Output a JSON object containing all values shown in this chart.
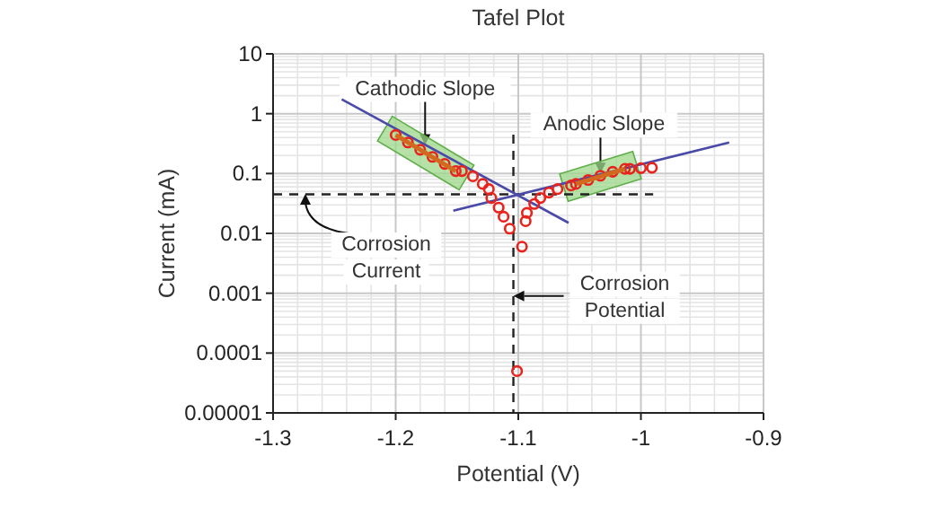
{
  "chart_data": {
    "type": "scatter",
    "title": "Tafel Plot",
    "xlabel": "Potential (V)",
    "ylabel": "Current (mA)",
    "log": "y",
    "grid": true,
    "xlim": [
      -1.3,
      -0.9
    ],
    "xticks": [
      -1.3,
      -1.2,
      -1.1,
      -1,
      -0.9
    ],
    "ylim": [
      1e-05,
      10
    ],
    "yticks": [
      {
        "value": 1e-05,
        "label": "0.00001"
      },
      0.0001,
      0.001,
      0.01,
      0.1,
      1,
      10
    ],
    "series": [
      {
        "type": "line",
        "color": "#4a4aa8",
        "x": [
          -1.244,
          -1.059
        ],
        "values": [
          1.74,
          0.015
        ]
      },
      {
        "type": "line",
        "color": "#4a4aa8",
        "x": [
          -1.153,
          -0.928
        ],
        "values": [
          0.024,
          0.33
        ]
      },
      {
        "marker": "circle",
        "color": "#e8231c",
        "x": [
          -1.2,
          -1.19,
          -1.18,
          -1.17,
          -1.16,
          -1.151,
          -1.146,
          -1.137,
          -1.129,
          -1.124,
          -1.122,
          -1.116,
          -1.112,
          -1.107,
          -1.097,
          -1.101,
          -1.094,
          -1.093,
          -1.087,
          -1.082,
          -1.075,
          -1.068,
          -1.057,
          -1.053,
          -1.043,
          -1.033,
          -1.023,
          -1.013,
          -1.009,
          -1.0,
          -0.991
        ],
        "values": [
          0.44,
          0.33,
          0.25,
          0.19,
          0.145,
          0.11,
          0.11,
          0.09,
          0.067,
          0.055,
          0.039,
          0.027,
          0.019,
          0.012,
          0.006,
          5e-05,
          0.016,
          0.022,
          0.031,
          0.039,
          0.048,
          0.055,
          0.063,
          0.067,
          0.078,
          0.092,
          0.107,
          0.12,
          0.12,
          0.123,
          0.125
        ]
      },
      {
        "type": "line",
        "color": "#d2691e",
        "x": [
          -1.2,
          -1.151
        ],
        "values": [
          0.44,
          0.11
        ]
      },
      {
        "type": "line",
        "color": "#d2691e",
        "x": [
          -1.053,
          -1.013
        ],
        "values": [
          0.067,
          0.12
        ]
      }
    ],
    "ref_lines": [
      {
        "axis": "y",
        "value": 0.045,
        "line_style": "dashed",
        "color": "#222222"
      },
      {
        "axis": "x",
        "value": -1.104,
        "line_style": "dashed",
        "color": "#222222"
      }
    ],
    "annotations": [
      {
        "text": "Cathodic Slope",
        "x": -1.176,
        "y": 0.3
      },
      {
        "text": "Anodic Slope",
        "x": -1.033,
        "y": 0.1
      },
      "Corrosion Current",
      {
        "text": "Corrosion Potential",
        "x": -1.104,
        "y": 0.0009
      }
    ]
  }
}
